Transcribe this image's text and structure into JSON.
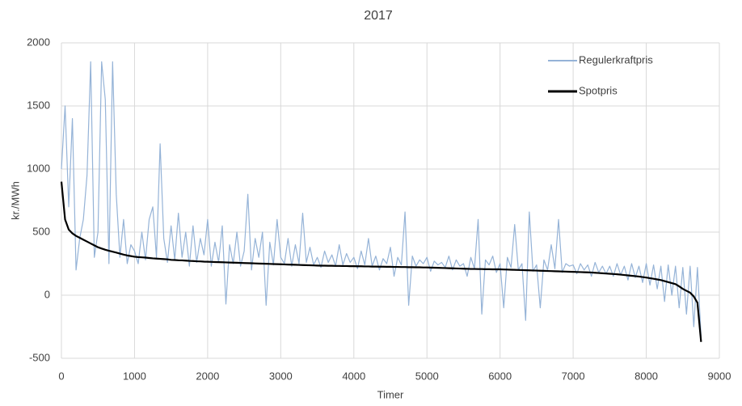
{
  "chart_data": {
    "type": "line",
    "title": "2017",
    "x_label": "Timer",
    "y_label": "kr./MWh",
    "xlim": [
      0,
      9000
    ],
    "xticks": [
      0,
      1000,
      2000,
      3000,
      4000,
      5000,
      6000,
      7000,
      8000,
      9000
    ],
    "ylim": [
      -500,
      2000
    ],
    "yticks": [
      -500,
      0,
      500,
      1000,
      1500,
      2000
    ],
    "grid": true,
    "legend": "top-right",
    "x": [
      0,
      50,
      100,
      150,
      200,
      250,
      300,
      350,
      400,
      450,
      500,
      550,
      600,
      650,
      700,
      750,
      800,
      850,
      900,
      950,
      1000,
      1050,
      1100,
      1150,
      1200,
      1250,
      1300,
      1350,
      1400,
      1450,
      1500,
      1550,
      1600,
      1650,
      1700,
      1750,
      1800,
      1850,
      1900,
      1950,
      2000,
      2050,
      2100,
      2150,
      2200,
      2250,
      2300,
      2350,
      2400,
      2450,
      2500,
      2550,
      2600,
      2650,
      2700,
      2750,
      2800,
      2850,
      2900,
      2950,
      3000,
      3050,
      3100,
      3150,
      3200,
      3250,
      3300,
      3350,
      3400,
      3450,
      3500,
      3550,
      3600,
      3650,
      3700,
      3750,
      3800,
      3850,
      3900,
      3950,
      4000,
      4050,
      4100,
      4150,
      4200,
      4250,
      4300,
      4350,
      4400,
      4450,
      4500,
      4550,
      4600,
      4650,
      4700,
      4750,
      4800,
      4850,
      4900,
      4950,
      5000,
      5050,
      5100,
      5150,
      5200,
      5250,
      5300,
      5350,
      5400,
      5450,
      5500,
      5550,
      5600,
      5650,
      5700,
      5750,
      5800,
      5850,
      5900,
      5950,
      6000,
      6050,
      6100,
      6150,
      6200,
      6250,
      6300,
      6350,
      6400,
      6450,
      6500,
      6550,
      6600,
      6650,
      6700,
      6750,
      6800,
      6850,
      6900,
      6950,
      7000,
      7050,
      7100,
      7150,
      7200,
      7250,
      7300,
      7350,
      7400,
      7450,
      7500,
      7550,
      7600,
      7650,
      7700,
      7750,
      7800,
      7850,
      7900,
      7950,
      8000,
      8050,
      8100,
      8150,
      8200,
      8250,
      8300,
      8350,
      8400,
      8450,
      8500,
      8550,
      8600,
      8650,
      8700,
      8750
    ],
    "series": [
      {
        "name": "Regulerkraftpris",
        "color": "#95b3d7",
        "width": 1.2,
        "values": [
          1000,
          1500,
          700,
          1400,
          200,
          450,
          600,
          950,
          1850,
          300,
          500,
          1850,
          1550,
          250,
          1850,
          800,
          300,
          600,
          250,
          400,
          350,
          250,
          500,
          280,
          600,
          700,
          300,
          1200,
          450,
          260,
          550,
          280,
          650,
          300,
          500,
          230,
          550,
          260,
          450,
          320,
          600,
          230,
          420,
          260,
          550,
          -70,
          400,
          250,
          500,
          230,
          350,
          800,
          200,
          450,
          300,
          500,
          -80,
          420,
          240,
          600,
          300,
          250,
          450,
          230,
          400,
          250,
          650,
          260,
          380,
          240,
          300,
          220,
          350,
          260,
          320,
          230,
          400,
          240,
          330,
          260,
          300,
          210,
          350,
          240,
          450,
          230,
          310,
          200,
          290,
          250,
          380,
          150,
          300,
          240,
          660,
          -80,
          310,
          230,
          280,
          250,
          300,
          190,
          270,
          240,
          260,
          220,
          310,
          200,
          280,
          230,
          250,
          150,
          300,
          210,
          600,
          -150,
          280,
          240,
          310,
          180,
          250,
          -100,
          300,
          220,
          560,
          200,
          250,
          -200,
          660,
          190,
          240,
          -100,
          280,
          200,
          400,
          210,
          600,
          180,
          250,
          230,
          240,
          170,
          250,
          200,
          240,
          150,
          260,
          180,
          230,
          170,
          230,
          150,
          250,
          160,
          230,
          120,
          250,
          140,
          230,
          100,
          250,
          80,
          240,
          50,
          230,
          -50,
          240,
          0,
          230,
          -100,
          220,
          -150,
          230,
          -250,
          220,
          -330
        ]
      },
      {
        "name": "Spotpris",
        "color": "#000000",
        "width": 2.2,
        "values": [
          900,
          600,
          520,
          490,
          470,
          455,
          440,
          425,
          410,
          395,
          380,
          370,
          360,
          352,
          345,
          338,
          330,
          322,
          315,
          310,
          305,
          302,
          300,
          298,
          295,
          292,
          290,
          288,
          286,
          284,
          280,
          279,
          277,
          276,
          274,
          272,
          271,
          269,
          268,
          266,
          265,
          264,
          263,
          262,
          261,
          260,
          259,
          258,
          257,
          256,
          255,
          254,
          253,
          252,
          251,
          250,
          249,
          248,
          247,
          246,
          245,
          244,
          243,
          242,
          241,
          240,
          239,
          238,
          237,
          236,
          235,
          234,
          234,
          233,
          233,
          232,
          232,
          231,
          231,
          230,
          230,
          229,
          229,
          228,
          228,
          227,
          227,
          226,
          226,
          225,
          225,
          224,
          224,
          223,
          223,
          222,
          222,
          221,
          221,
          220,
          220,
          219,
          218,
          217,
          216,
          215,
          214,
          213,
          212,
          211,
          210,
          209,
          208,
          208,
          207,
          207,
          206,
          206,
          205,
          205,
          205,
          204,
          203,
          202,
          201,
          200,
          199,
          198,
          197,
          196,
          195,
          194,
          193,
          192,
          191,
          190,
          189,
          188,
          187,
          186,
          185,
          184,
          183,
          182,
          181,
          180,
          178,
          176,
          174,
          172,
          170,
          168,
          166,
          163,
          160,
          157,
          154,
          151,
          148,
          144,
          140,
          135,
          130,
          125,
          120,
          112,
          104,
          96,
          88,
          70,
          50,
          35,
          20,
          -10,
          -60,
          -370
        ]
      }
    ]
  }
}
